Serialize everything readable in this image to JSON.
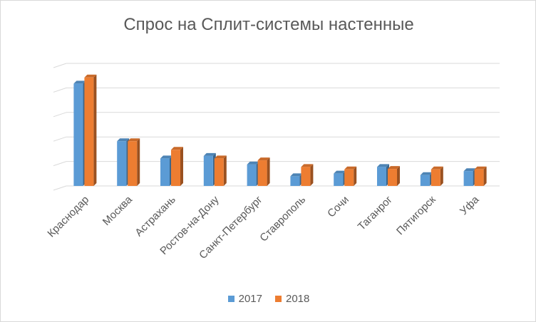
{
  "chart_data": {
    "type": "bar",
    "title": "Спрос на Сплит-системы настенные",
    "categories": [
      "Краснодар",
      "Москва",
      "Астрахань",
      "Ростов-на-Дону",
      "Санкт-Петербург",
      "Ставрополь",
      "Сочи",
      "Таганрог",
      "Пятигорск",
      "Уфа"
    ],
    "series": [
      {
        "name": "2017",
        "values": [
          4.0,
          1.65,
          0.95,
          1.05,
          0.7,
          0.22,
          0.33,
          0.6,
          0.27,
          0.43
        ],
        "color": "#5b9bd5"
      },
      {
        "name": "2018",
        "values": [
          4.25,
          1.65,
          1.3,
          0.95,
          0.87,
          0.6,
          0.5,
          0.52,
          0.5,
          0.5
        ],
        "color": "#ed7d31"
      }
    ],
    "ylim": [
      0,
      5
    ],
    "grid": true,
    "legend": "bottom",
    "tick_labels_visible": false
  }
}
